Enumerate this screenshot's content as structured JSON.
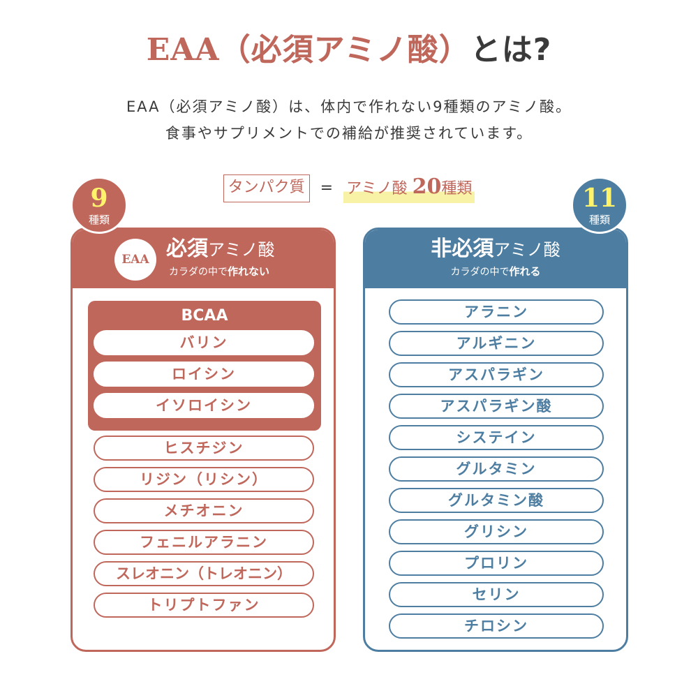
{
  "title": {
    "accent": "EAA（必須アミノ酸）",
    "rest": "とは?"
  },
  "description": {
    "line1": "EAA（必須アミノ酸）は、体内で作れない9種類のアミノ酸。",
    "line2": "食事やサプリメントでの補給が推奨されています。"
  },
  "equation": {
    "left": "タンパク質",
    "sign": "=",
    "right_prefix": "アミノ酸",
    "right_number": "20",
    "right_suffix": "種類"
  },
  "essential": {
    "count": "9",
    "count_label": "種類",
    "badge": "EAA",
    "title_main": "必須",
    "title_small": "アミノ酸",
    "subtitle_prefix": "カラダの中で",
    "subtitle_bold": "作れない",
    "bcaa_label": "BCAA",
    "bcaa_items": [
      "バリン",
      "ロイシン",
      "イソロイシン"
    ],
    "other_items": [
      "ヒスチジン",
      "リジン（リシン）",
      "メチオニン",
      "フェニルアラニン",
      "スレオニン（トレオニン）",
      "トリプトファン"
    ]
  },
  "nonessential": {
    "count": "11",
    "count_label": "種類",
    "title_main": "非必須",
    "title_small": "アミノ酸",
    "subtitle_prefix": "カラダの中で",
    "subtitle_bold": "作れる",
    "items": [
      "アラニン",
      "アルギニン",
      "アスパラギン",
      "アスパラギン酸",
      "システイン",
      "グルタミン",
      "グルタミン酸",
      "グリシン",
      "プロリン",
      "セリン",
      "チロシン"
    ]
  },
  "colors": {
    "essential": "#c0675c",
    "nonessential": "#4d7ea1",
    "count_number": "#fff36b",
    "highlight": "#f7f2a6"
  }
}
